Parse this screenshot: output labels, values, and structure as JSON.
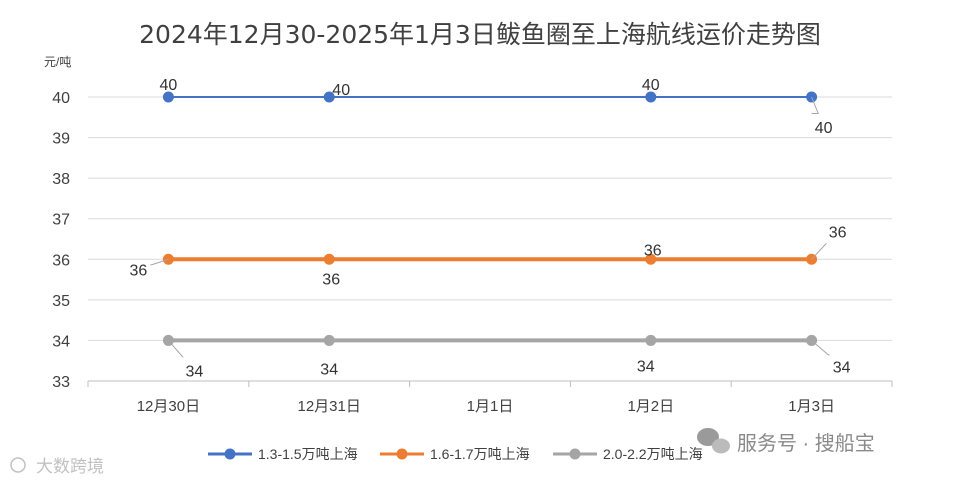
{
  "chart_data": {
    "type": "line",
    "title": "2024年12月30-2025年1月3日鲅鱼圈至上海航线运价走势图",
    "ylabel": "元/吨",
    "xlabel": "",
    "categories": [
      "12月30日",
      "12月31日",
      "1月1日",
      "1月2日",
      "1月3日"
    ],
    "ylim": [
      33,
      40
    ],
    "yticks": [
      33,
      34,
      35,
      36,
      37,
      38,
      39,
      40
    ],
    "grid": true,
    "legend_position": "bottom",
    "series": [
      {
        "name": "1.3-1.5万吨上海",
        "color": "#4472C4",
        "values": [
          40,
          40,
          null,
          40,
          40
        ]
      },
      {
        "name": "1.6-1.7万吨上海",
        "color": "#ED7D31",
        "values": [
          36,
          36,
          null,
          36,
          36
        ]
      },
      {
        "name": "2.0-2.2万吨上海",
        "color": "#A5A5A5",
        "values": [
          34,
          34,
          null,
          34,
          34
        ]
      }
    ]
  },
  "watermarks": {
    "left": "大数跨境",
    "right": "服务号 · 搜船宝"
  }
}
